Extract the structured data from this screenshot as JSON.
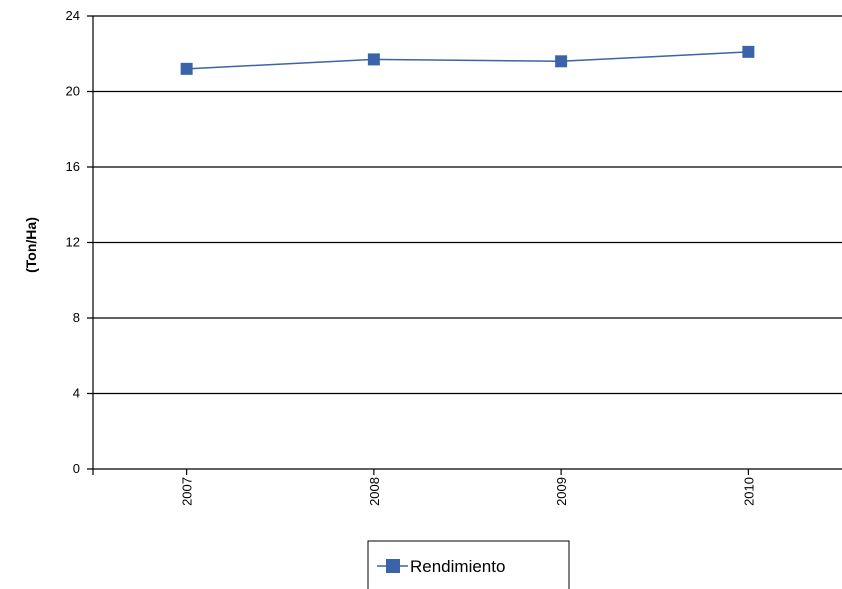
{
  "chart_data": {
    "type": "line",
    "title": "",
    "xlabel": "",
    "ylabel": "(Ton/Ha)",
    "categories": [
      "2007",
      "2008",
      "2009",
      "2010"
    ],
    "series": [
      {
        "name": "Rendimiento",
        "values": [
          21.2,
          21.7,
          21.6,
          22.1
        ],
        "color": "#3a64a8"
      }
    ],
    "ylim": [
      0,
      24
    ],
    "yticks": [
      0,
      4,
      8,
      12,
      16,
      20,
      24
    ],
    "grid": true,
    "legend_position": "bottom-center"
  }
}
